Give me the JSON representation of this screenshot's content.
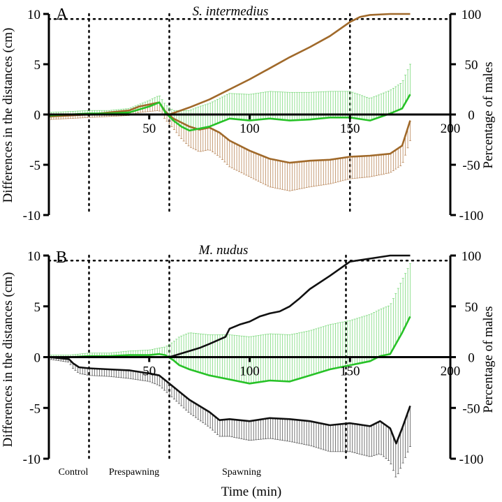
{
  "chart_data": [
    {
      "panel": "A",
      "title": "S. intermedius",
      "type": "line",
      "xlim": [
        0,
        200
      ],
      "ylim_left": [
        -10,
        10
      ],
      "ylim_right": [
        -100,
        100
      ],
      "x_ticks": [
        "50",
        "100",
        "150",
        "200"
      ],
      "y_left_ticks": [
        "-10",
        "-5",
        "0",
        "5",
        "10"
      ],
      "y_right_ticks": [
        "-100",
        "-50",
        "0",
        "50",
        "100"
      ],
      "vlines": [
        20,
        60,
        150
      ],
      "hline_right": 95,
      "colors": {
        "brown": "#a0692a",
        "green": "#27c227",
        "green_err": "#7cd97c",
        "brown_err": "#b9875a"
      },
      "series": [
        {
          "axis": "left",
          "color": "brown",
          "x": [
            0,
            10,
            20,
            30,
            40,
            45,
            50,
            55,
            58,
            62,
            66,
            70,
            75,
            80,
            85,
            90,
            100,
            110,
            120,
            130,
            140,
            150,
            160,
            170,
            176,
            180
          ],
          "y": [
            -0.2,
            -0.1,
            0,
            0.2,
            0.4,
            0.8,
            1.0,
            1.2,
            0.3,
            -0.4,
            -0.8,
            -1.2,
            -1.5,
            -1.3,
            -1.8,
            -2.6,
            -3.6,
            -4.4,
            -4.8,
            -4.6,
            -4.5,
            -4.2,
            -4.1,
            -3.9,
            -3.1,
            -0.6
          ],
          "err": [
            0.3,
            0.3,
            0.3,
            0.4,
            0.5,
            0.6,
            0.7,
            0.8,
            0.8,
            1.0,
            1.6,
            2.0,
            2.2,
            2.2,
            2.4,
            2.6,
            2.6,
            2.8,
            2.8,
            2.6,
            2.4,
            2.2,
            2.1,
            1.9,
            1.9,
            2.0
          ]
        },
        {
          "axis": "left",
          "color": "green",
          "x": [
            0,
            10,
            20,
            30,
            40,
            45,
            50,
            55,
            58,
            62,
            66,
            70,
            75,
            80,
            85,
            90,
            100,
            110,
            120,
            130,
            140,
            150,
            160,
            170,
            176,
            180
          ],
          "y": [
            -0.1,
            0,
            0.1,
            0.1,
            0.2,
            0.5,
            0.8,
            1.2,
            0.2,
            -0.6,
            -1.2,
            -1.6,
            -1.4,
            -1.2,
            -0.8,
            -0.4,
            -0.6,
            -0.4,
            -0.6,
            -0.5,
            -0.3,
            -0.3,
            -0.6,
            0.1,
            0.6,
            2.0
          ],
          "err": [
            0.3,
            0.3,
            0.3,
            0.3,
            0.4,
            0.5,
            0.6,
            0.7,
            0.8,
            1.0,
            1.6,
            2.0,
            2.2,
            2.3,
            2.4,
            2.5,
            2.6,
            2.7,
            2.8,
            2.7,
            2.6,
            2.6,
            2.2,
            2.3,
            2.6,
            3.0
          ]
        },
        {
          "axis": "right",
          "color": "brown",
          "x": [
            0,
            60,
            70,
            80,
            90,
            100,
            110,
            120,
            130,
            140,
            150,
            155,
            160,
            170,
            180
          ],
          "y": [
            0,
            0,
            7,
            15,
            25,
            35,
            46,
            57,
            67,
            78,
            92,
            97,
            99,
            100,
            100
          ]
        }
      ]
    },
    {
      "panel": "B",
      "title": "M. nudus",
      "type": "line",
      "xlim": [
        0,
        200
      ],
      "ylim_left": [
        -10,
        10
      ],
      "ylim_right": [
        -100,
        100
      ],
      "x_ticks": [
        "50",
        "100",
        "150",
        "200"
      ],
      "y_left_ticks": [
        "-10",
        "-5",
        "0",
        "5",
        "10"
      ],
      "y_right_ticks": [
        "-100",
        "-50",
        "0",
        "50",
        "100"
      ],
      "vlines": [
        20,
        60,
        148
      ],
      "hline_right": 95,
      "phase_labels": [
        "Control",
        "Prespawning",
        "Spawning"
      ],
      "xlabel": "Time (min)",
      "colors": {
        "black": "#111111",
        "black_err": "#555555",
        "green": "#27c227",
        "green_err": "#7cd97c"
      },
      "series": [
        {
          "axis": "left",
          "color": "black",
          "x": [
            0,
            10,
            12,
            15,
            20,
            30,
            40,
            50,
            55,
            60,
            65,
            70,
            80,
            85,
            90,
            100,
            110,
            120,
            130,
            140,
            150,
            160,
            165,
            170,
            173,
            176,
            180
          ],
          "y": [
            0,
            -0.2,
            -0.6,
            -1.0,
            -1.1,
            -1.2,
            -1.3,
            -1.6,
            -1.8,
            -2.6,
            -3.4,
            -4.2,
            -5.4,
            -6.2,
            -6.1,
            -6.3,
            -6.0,
            -6.1,
            -6.3,
            -6.7,
            -6.5,
            -6.8,
            -6.3,
            -7.0,
            -8.5,
            -7.0,
            -4.8
          ],
          "err": [
            0.2,
            0.3,
            0.5,
            0.6,
            0.7,
            0.7,
            0.8,
            0.8,
            1.0,
            1.1,
            1.2,
            1.3,
            1.5,
            1.6,
            1.7,
            1.9,
            2.0,
            2.2,
            2.4,
            2.6,
            2.8,
            3.0,
            3.2,
            3.3,
            3.4,
            3.6,
            4.0
          ]
        },
        {
          "axis": "left",
          "color": "green",
          "x": [
            0,
            10,
            20,
            30,
            40,
            50,
            55,
            58,
            62,
            65,
            70,
            80,
            90,
            100,
            110,
            120,
            130,
            140,
            150,
            160,
            165,
            170,
            176,
            180
          ],
          "y": [
            0,
            0,
            0.1,
            0.1,
            0.2,
            0.2,
            0.3,
            0.2,
            -0.3,
            -0.8,
            -1.2,
            -1.8,
            -2.2,
            -2.6,
            -2.3,
            -2.4,
            -1.8,
            -1.2,
            -0.8,
            -0.4,
            0.1,
            0.3,
            2.4,
            4.0
          ],
          "err": [
            0.2,
            0.2,
            0.3,
            0.3,
            0.4,
            0.5,
            0.6,
            0.8,
            1.8,
            2.8,
            3.6,
            4.0,
            4.4,
            4.6,
            4.6,
            4.6,
            4.4,
            4.4,
            4.4,
            4.6,
            4.6,
            4.8,
            5.2,
            5.2
          ]
        },
        {
          "axis": "right",
          "color": "black",
          "x": [
            0,
            60,
            65,
            70,
            75,
            80,
            88,
            90,
            95,
            100,
            105,
            110,
            115,
            120,
            125,
            130,
            140,
            150,
            160,
            170,
            180
          ],
          "y": [
            0,
            0,
            3,
            6,
            9,
            13,
            20,
            28,
            32,
            35,
            40,
            43,
            45,
            50,
            58,
            67,
            80,
            94,
            97,
            100,
            100
          ]
        }
      ]
    }
  ],
  "shared_ylabel_left": "Differences in the  distances (cm)",
  "shared_ylabel_right": "Percentage of males"
}
